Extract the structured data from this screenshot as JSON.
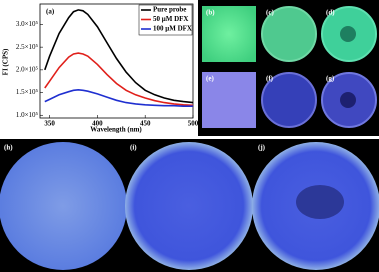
{
  "chart_data": {
    "type": "line",
    "panel_label": "(a)",
    "x_label": "Wavelength (nm)",
    "y_label": "FI (CPS)",
    "x": [
      345,
      350,
      360,
      370,
      375,
      380,
      385,
      390,
      400,
      410,
      420,
      430,
      440,
      450,
      460,
      470,
      480,
      490,
      500
    ],
    "series": [
      {
        "name": "Pure probe",
        "color": "#000000",
        "values": [
          200000,
          230000,
          280000,
          315000,
          328000,
          332000,
          330000,
          322000,
          295000,
          260000,
          225000,
          195000,
          172000,
          155000,
          145000,
          138000,
          133000,
          130000,
          128000
        ]
      },
      {
        "name": "50 μM DFX",
        "color": "#e0201b",
        "values": [
          160000,
          175000,
          205000,
          228000,
          235000,
          237000,
          235000,
          230000,
          212000,
          190000,
          170000,
          155000,
          145000,
          138000,
          132000,
          128000,
          125000,
          123000,
          122000
        ]
      },
      {
        "name": "100 μM DFX",
        "color": "#1f2fd0",
        "values": [
          130000,
          135000,
          145000,
          152000,
          155000,
          156000,
          155000,
          153000,
          147000,
          140000,
          133000,
          128000,
          125000,
          123000,
          122000,
          121000,
          121000,
          120000,
          120000
        ]
      }
    ],
    "xlim": [
      340,
      500
    ],
    "xticks": [
      350,
      400,
      450,
      500
    ],
    "ylim": [
      94000,
      345000
    ],
    "yticks": [
      {
        "value": 100000,
        "label": "1.0×10⁵"
      },
      {
        "value": 150000,
        "label": "1.5×10⁵"
      },
      {
        "value": 200000,
        "label": "2.0×10⁵"
      },
      {
        "value": 250000,
        "label": "2.5×10⁵"
      },
      {
        "value": 300000,
        "label": "3.0×10⁵"
      }
    ],
    "legend": "upper right"
  },
  "photos": [
    {
      "label": "(b)"
    },
    {
      "label": "(c)"
    },
    {
      "label": "(d)"
    },
    {
      "label": "(e)"
    },
    {
      "label": "(f)"
    },
    {
      "label": "(g)"
    },
    {
      "label": "(h)"
    },
    {
      "label": "(i)"
    },
    {
      "label": "(j)"
    }
  ]
}
